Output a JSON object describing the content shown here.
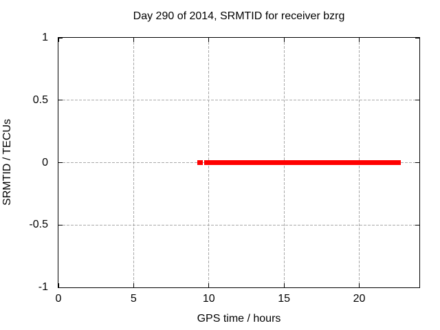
{
  "chart_data": {
    "type": "scatter",
    "title": "Day 290 of 2014, SRMTID for receiver bzrg",
    "xlabel": "GPS time / hours",
    "ylabel": "SRMTID / TECUs",
    "xlim": [
      0,
      24
    ],
    "ylim": [
      -1,
      1
    ],
    "xticks": [
      {
        "value": 0,
        "label": "0"
      },
      {
        "value": 5,
        "label": "5"
      },
      {
        "value": 10,
        "label": "10"
      },
      {
        "value": 15,
        "label": "15"
      },
      {
        "value": 20,
        "label": "20"
      }
    ],
    "yticks": [
      {
        "value": 1,
        "label": "1"
      },
      {
        "value": 0.5,
        "label": "0.5"
      },
      {
        "value": 0,
        "label": "0"
      },
      {
        "value": -0.5,
        "label": "-0.5"
      },
      {
        "value": -1,
        "label": "-1"
      }
    ],
    "grid": true,
    "legend": "none",
    "series": [
      {
        "name": "SRMTID",
        "marker": "plus",
        "color": "#ff0000",
        "y_value": 0,
        "segments_x_hours": [
          [
            9.23,
            9.6
          ],
          [
            9.69,
            22.77
          ]
        ]
      }
    ],
    "colors": {
      "data_red": "#ff0000",
      "grid": "#a8a8a8",
      "axis": "#000000",
      "background": "#ffffff",
      "text": "#000000"
    }
  }
}
